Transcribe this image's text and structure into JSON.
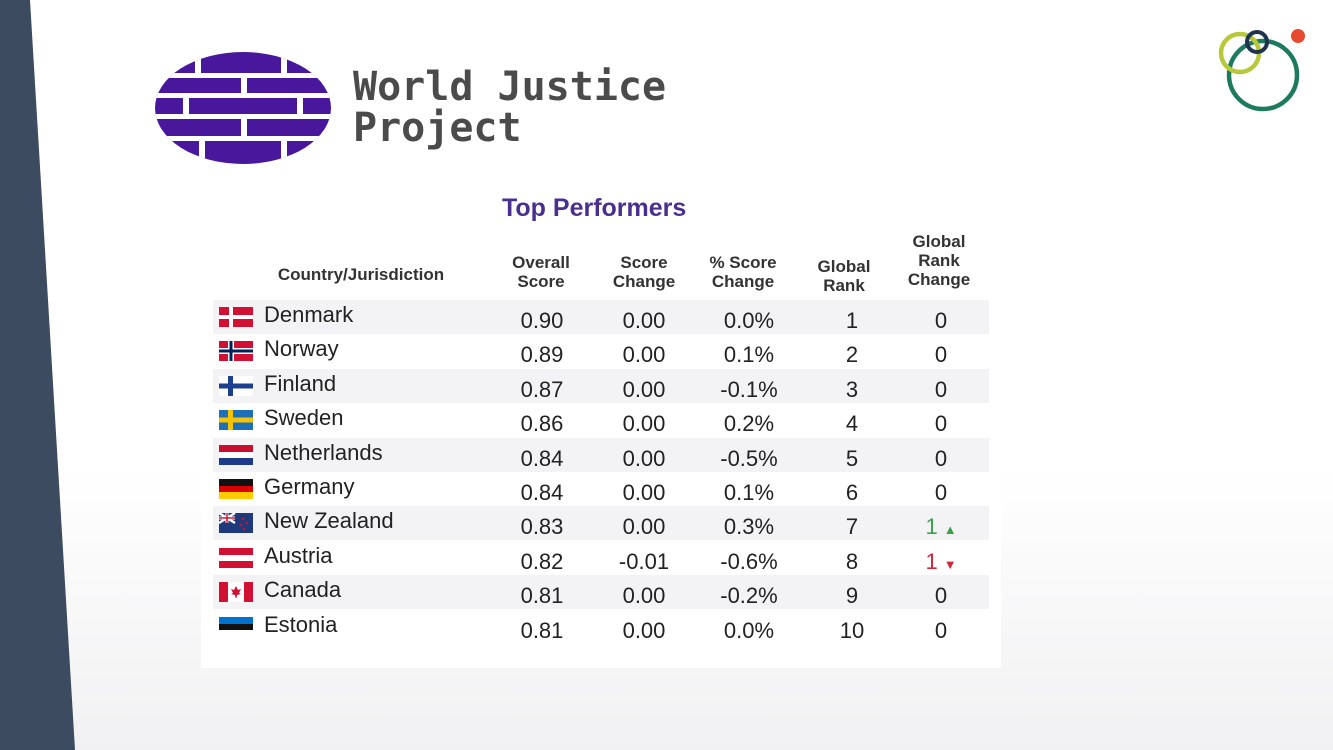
{
  "brand": {
    "name_line1": "World Justice",
    "name_line2": "Project",
    "logo_color": "#48179c"
  },
  "table": {
    "title": "Top Performers",
    "headers": {
      "country": "Country/Jurisdiction",
      "overall_score": "Overall\nScore",
      "score_change": "Score\nChange",
      "pct_score_change": "% Score\nChange",
      "global_rank": "Global\nRank",
      "global_rank_change": "Global\nRank\nChange"
    },
    "rows": [
      {
        "country": "Denmark",
        "flag": "denmark-flag-icon",
        "overall": "0.90",
        "change": "0.00",
        "pct": "0.0%",
        "rank": "1",
        "rank_change": "0",
        "trend": "none"
      },
      {
        "country": "Norway",
        "flag": "norway-flag-icon",
        "overall": "0.89",
        "change": "0.00",
        "pct": "0.1%",
        "rank": "2",
        "rank_change": "0",
        "trend": "none"
      },
      {
        "country": "Finland",
        "flag": "finland-flag-icon",
        "overall": "0.87",
        "change": "0.00",
        "pct": "-0.1%",
        "rank": "3",
        "rank_change": "0",
        "trend": "none"
      },
      {
        "country": "Sweden",
        "flag": "sweden-flag-icon",
        "overall": "0.86",
        "change": "0.00",
        "pct": "0.2%",
        "rank": "4",
        "rank_change": "0",
        "trend": "none"
      },
      {
        "country": "Netherlands",
        "flag": "netherlands-flag-icon",
        "overall": "0.84",
        "change": "0.00",
        "pct": "-0.5%",
        "rank": "5",
        "rank_change": "0",
        "trend": "none"
      },
      {
        "country": "Germany",
        "flag": "germany-flag-icon",
        "overall": "0.84",
        "change": "0.00",
        "pct": "0.1%",
        "rank": "6",
        "rank_change": "0",
        "trend": "none"
      },
      {
        "country": "New Zealand",
        "flag": "new-zealand-flag-icon",
        "overall": "0.83",
        "change": "0.00",
        "pct": "0.3%",
        "rank": "7",
        "rank_change": "1",
        "trend": "up"
      },
      {
        "country": "Austria",
        "flag": "austria-flag-icon",
        "overall": "0.82",
        "change": "-0.01",
        "pct": "-0.6%",
        "rank": "8",
        "rank_change": "1",
        "trend": "down"
      },
      {
        "country": "Canada",
        "flag": "canada-flag-icon",
        "overall": "0.81",
        "change": "0.00",
        "pct": "-0.2%",
        "rank": "9",
        "rank_change": "0",
        "trend": "none"
      },
      {
        "country": "Estonia",
        "flag": "estonia-flag-icon",
        "overall": "0.81",
        "change": "0.00",
        "pct": "0.0%",
        "rank": "10",
        "rank_change": "0",
        "trend": "none"
      }
    ]
  },
  "colors": {
    "title": "#4b2f8f",
    "sidebar": "#3d4b61",
    "rank_up": "#3aa04a",
    "rank_down": "#d0283a",
    "corner_green": "#1e7a5e",
    "corner_lime": "#b7c93a",
    "corner_red": "#e84a2f",
    "corner_navy": "#1f3350"
  }
}
